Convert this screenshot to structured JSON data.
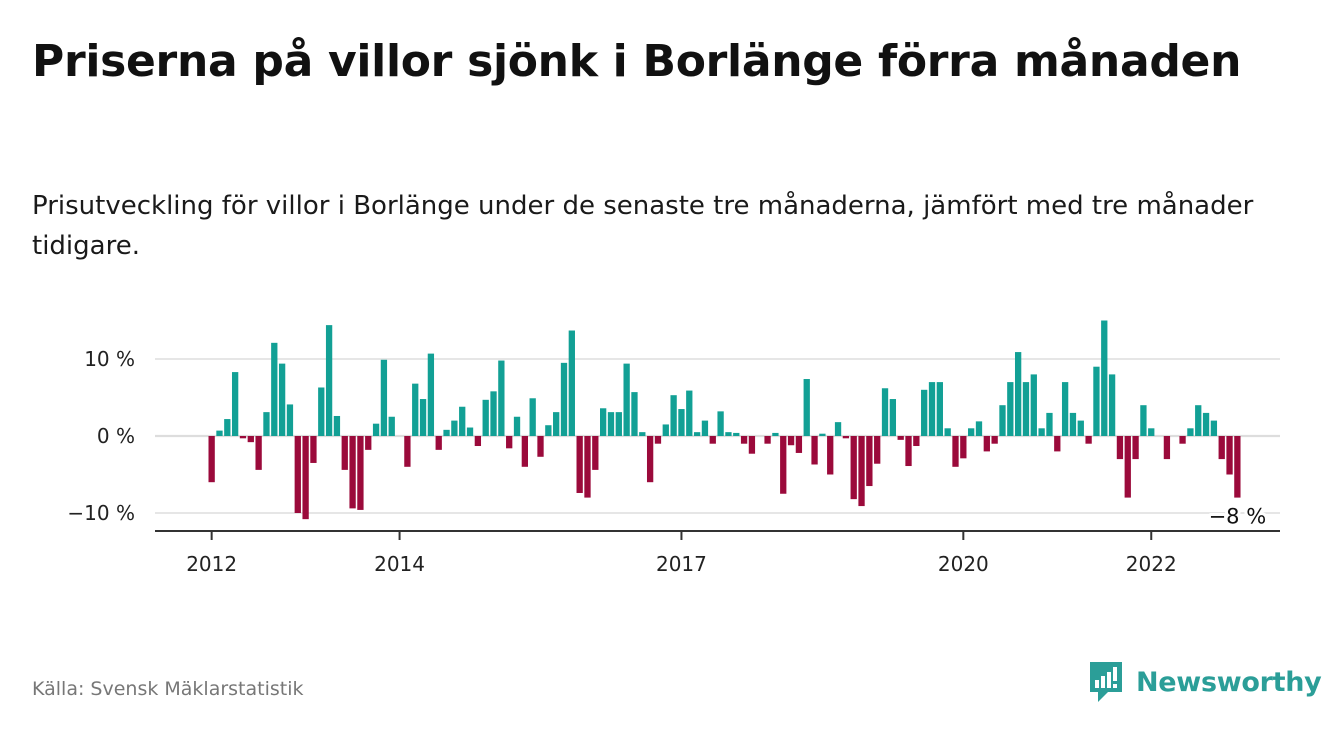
{
  "header": {
    "title": "Priserna på villor sjönk i Borlänge förra månaden",
    "subtitle": "Prisutveckling för villor i Borlänge under de senaste tre månaderna, jämfört med tre månader tidigare."
  },
  "footer": {
    "source": "Källa: Svensk Mäklarstatistik",
    "brand": "Newsworthy",
    "brand_icon": "bar-chart-speech-bubble-icon"
  },
  "colors": {
    "positive": "#12a095",
    "negative": "#9b0a3b",
    "grid": "#dddddd",
    "axis": "#333333",
    "brand": "#2b9e98"
  },
  "chart_data": {
    "type": "bar",
    "x_start": "2012-01",
    "x_unit": "month",
    "y_unit": "%",
    "ylim": [
      -12,
      15.5
    ],
    "grid": true,
    "y_ticks": [
      {
        "value": 10,
        "label": "10 %"
      },
      {
        "value": 0,
        "label": "0 %"
      },
      {
        "value": -10,
        "label": "−10 %"
      }
    ],
    "x_ticks": [
      {
        "value": "2012-01",
        "label": "2012"
      },
      {
        "value": "2014-01",
        "label": "2014"
      },
      {
        "value": "2017-01",
        "label": "2017"
      },
      {
        "value": "2020-01",
        "label": "2020"
      },
      {
        "value": "2022-01",
        "label": "2022"
      }
    ],
    "end_label": "−8 %",
    "values": [
      -6,
      0.7,
      2.2,
      8.3,
      -0.3,
      -0.8,
      -4.4,
      3.1,
      12.1,
      9.4,
      4.1,
      -10,
      -10.8,
      -3.5,
      6.3,
      14.4,
      2.6,
      -4.4,
      -9.4,
      -9.6,
      -1.8,
      1.6,
      9.9,
      2.5,
      0,
      -4,
      6.8,
      4.8,
      10.7,
      -1.8,
      0.8,
      2,
      3.8,
      1.1,
      -1.3,
      4.7,
      5.8,
      9.8,
      -1.6,
      2.5,
      -4,
      4.9,
      -2.7,
      1.4,
      3.1,
      9.5,
      13.7,
      -7.4,
      -8,
      -4.4,
      3.6,
      3.1,
      3.1,
      9.4,
      5.7,
      0.5,
      -6,
      -1,
      1.5,
      5.3,
      3.5,
      5.9,
      0.5,
      2,
      -1,
      3.2,
      0.5,
      0.4,
      -1,
      -2.3,
      0,
      -1,
      0.4,
      -7.5,
      -1.2,
      -2.2,
      7.4,
      -3.7,
      0.3,
      -5,
      1.8,
      -0.3,
      -8.2,
      -9.1,
      -6.5,
      -3.6,
      6.2,
      4.8,
      -0.5,
      -3.9,
      -1.3,
      6,
      7,
      7,
      1,
      -4,
      -2.9,
      1,
      1.9,
      -2,
      -1,
      4,
      7,
      10.9,
      7,
      8,
      1,
      3,
      -2,
      7,
      3,
      2,
      -1,
      9,
      15,
      8,
      -3,
      -8,
      -3,
      4,
      1,
      0,
      -3,
      0,
      -1,
      1,
      4,
      3,
      2,
      -3,
      -5,
      -8
    ]
  }
}
